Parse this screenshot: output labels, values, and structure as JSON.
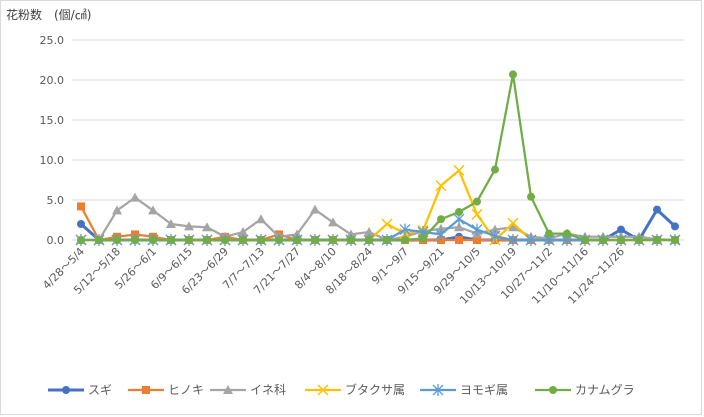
{
  "chart_data": {
    "type": "line",
    "ylabel": "花粉数　(個/㎠)",
    "ylim": [
      0,
      25
    ],
    "yticks": [
      "0.0",
      "5.0",
      "10.0",
      "15.0",
      "20.0",
      "25.0"
    ],
    "grid": true,
    "legend_position": "bottom",
    "x_tick_labels": [
      "4/28～5/4",
      "5/12～5/18",
      "5/26～6/1",
      "6/9～6/15",
      "6/23～6/29",
      "7/7～7/13",
      "7/21～7/27",
      "8/4～8/10",
      "8/18～8/24",
      "9/1～9/7",
      "9/15～9/21",
      "9/29～10/5",
      "10/13～10/19",
      "10/27～11/2",
      "11/10～11/16",
      "11/24～11/26"
    ],
    "series": [
      {
        "name": "スギ",
        "color": "#4472c4",
        "marker": "circle",
        "values": [
          2.0,
          0,
          0,
          0,
          0,
          0,
          0,
          0,
          0,
          0,
          0,
          0,
          0,
          0,
          0,
          0,
          0,
          0,
          0,
          0,
          0,
          0.4,
          0,
          0,
          0,
          0,
          0,
          0,
          0,
          0,
          1.3,
          0,
          3.8,
          1.7
        ]
      },
      {
        "name": "ヒノキ",
        "color": "#ed7d31",
        "marker": "square",
        "values": [
          4.2,
          0,
          0.4,
          0.7,
          0.4,
          0,
          0,
          0,
          0.4,
          0,
          0,
          0.7,
          0,
          0,
          0,
          0,
          0,
          0,
          0,
          0,
          0,
          0,
          0,
          0,
          0,
          0,
          0,
          0,
          0,
          0,
          0,
          0,
          0,
          0
        ]
      },
      {
        "name": "イネ科",
        "color": "#a5a5a5",
        "marker": "triangle",
        "values": [
          0,
          0,
          3.7,
          5.3,
          3.7,
          2.0,
          1.7,
          1.6,
          0.4,
          1.0,
          2.6,
          0.4,
          0.7,
          3.8,
          2.2,
          0.7,
          1.0,
          0,
          0.4,
          1.1,
          1.4,
          1.6,
          0.8,
          1.3,
          1.6,
          0.4,
          0.2,
          0.8,
          0.4,
          0.4,
          0.4,
          0.4,
          0.1,
          0
        ]
      },
      {
        "name": "ブタクサ属",
        "color": "#ffc000",
        "marker": "x",
        "values": [
          0,
          0,
          0,
          0,
          0,
          0,
          0,
          0,
          0,
          0,
          0,
          0,
          0,
          0,
          0,
          0,
          0,
          2.0,
          0.8,
          1.2,
          6.8,
          8.7,
          3.2,
          0,
          2.1,
          0,
          0,
          0,
          0,
          0,
          0,
          0,
          0,
          0
        ]
      },
      {
        "name": "ヨモギ属",
        "color": "#5b9bd5",
        "marker": "star",
        "values": [
          0,
          0,
          0,
          0,
          0,
          0,
          0,
          0,
          0,
          0,
          0,
          0,
          0,
          0,
          0,
          0,
          0,
          0,
          1.3,
          1.0,
          0.7,
          2.6,
          1.3,
          0.5,
          0,
          0,
          0,
          0,
          0,
          0,
          0,
          0,
          0,
          0
        ]
      },
      {
        "name": "カナムグラ",
        "color": "#70ad47",
        "marker": "circle",
        "values": [
          0,
          0,
          0,
          0,
          0,
          0,
          0,
          0,
          0,
          0,
          0,
          0,
          0,
          0,
          0,
          0,
          0,
          0,
          0,
          0.2,
          2.6,
          3.5,
          4.8,
          8.8,
          20.7,
          5.4,
          0.8,
          0.8,
          0,
          0,
          0,
          0,
          0,
          0
        ]
      }
    ]
  }
}
